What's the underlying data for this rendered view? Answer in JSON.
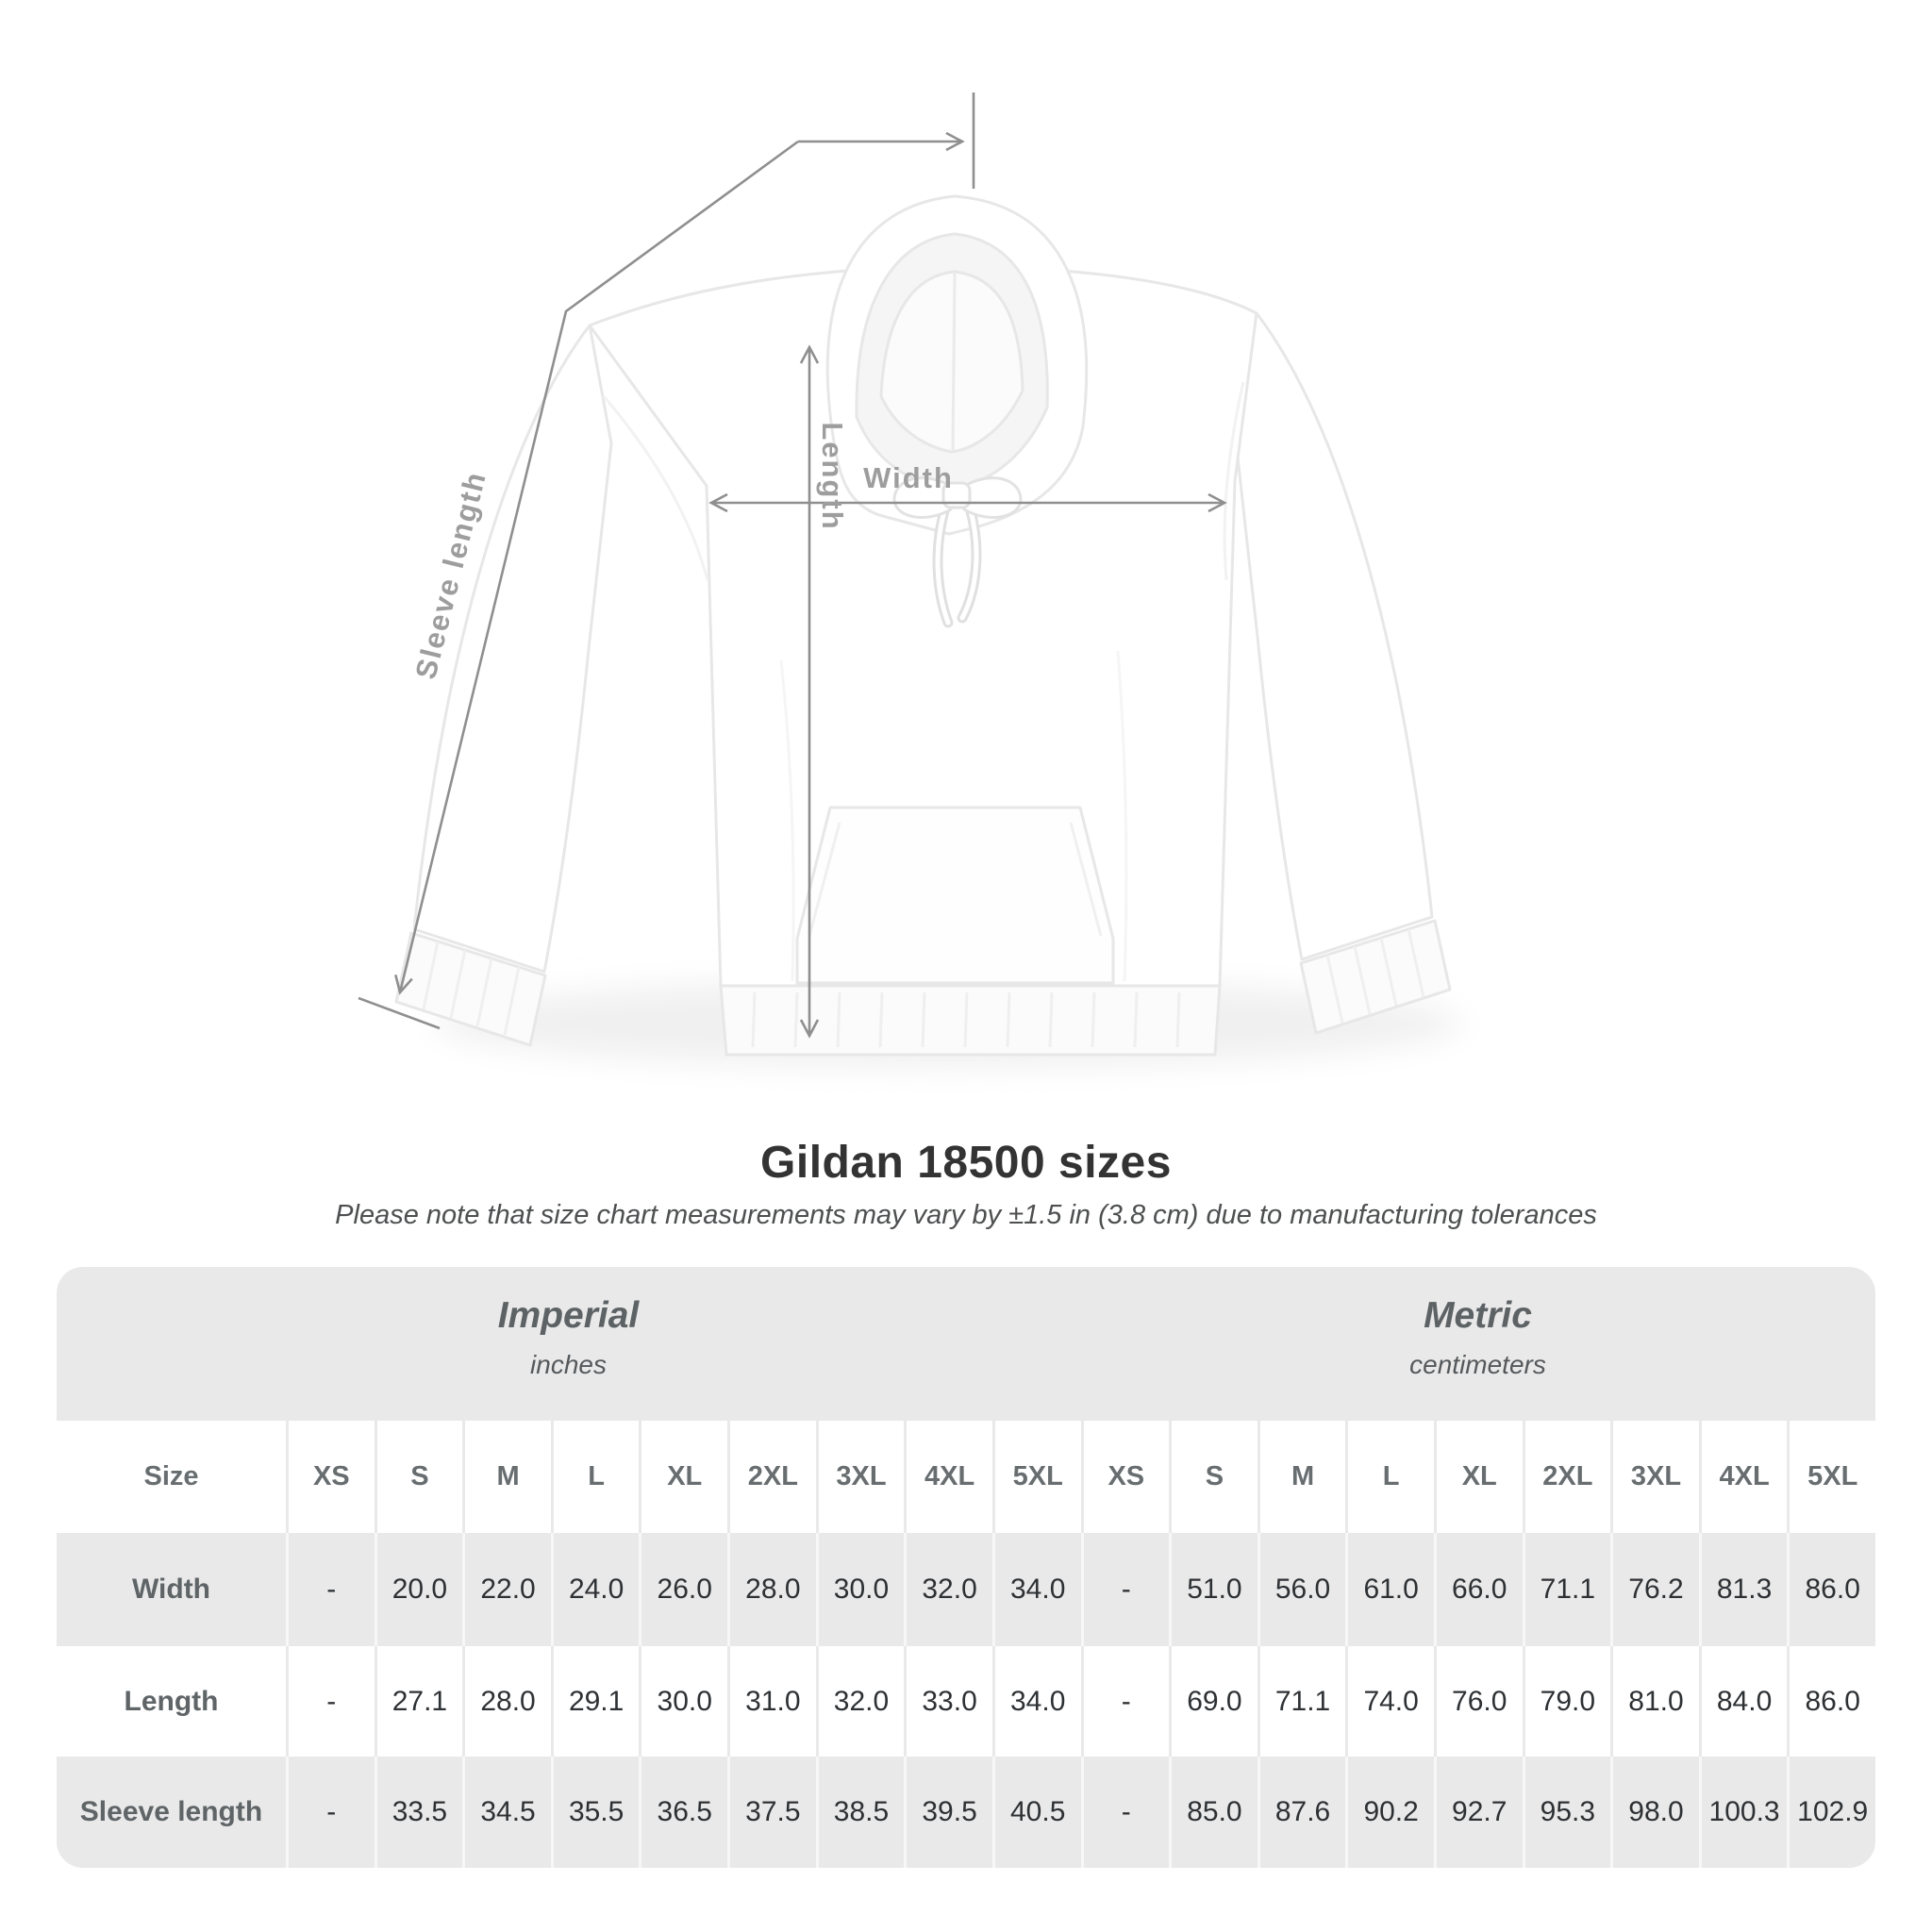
{
  "title": "Gildan 18500 sizes",
  "subtitle": "Please note that size chart measurements may vary by ±1.5 in (3.8 cm) due to manufacturing tolerances",
  "diagram": {
    "labels": {
      "length": "Length",
      "width": "Width",
      "sleeve": "Sleeve length"
    }
  },
  "table": {
    "groups": [
      {
        "name": "Imperial",
        "unit": "inches"
      },
      {
        "name": "Metric",
        "unit": "centimeters"
      }
    ],
    "size_header": "Size",
    "sizes": [
      "XS",
      "S",
      "M",
      "L",
      "XL",
      "2XL",
      "3XL",
      "4XL",
      "5XL"
    ],
    "rows": [
      {
        "label": "Width",
        "imperial": [
          "-",
          "20.0",
          "22.0",
          "24.0",
          "26.0",
          "28.0",
          "30.0",
          "32.0",
          "34.0"
        ],
        "metric": [
          "-",
          "51.0",
          "56.0",
          "61.0",
          "66.0",
          "71.1",
          "76.2",
          "81.3",
          "86.0"
        ]
      },
      {
        "label": "Length",
        "imperial": [
          "-",
          "27.1",
          "28.0",
          "29.1",
          "30.0",
          "31.0",
          "32.0",
          "33.0",
          "34.0"
        ],
        "metric": [
          "-",
          "69.0",
          "71.1",
          "74.0",
          "76.0",
          "79.0",
          "81.0",
          "84.0",
          "86.0"
        ]
      },
      {
        "label": "Sleeve length",
        "imperial": [
          "-",
          "33.5",
          "34.5",
          "35.5",
          "36.5",
          "37.5",
          "38.5",
          "39.5",
          "40.5"
        ],
        "metric": [
          "-",
          "85.0",
          "87.6",
          "90.2",
          "92.7",
          "95.3",
          "98.0",
          "100.3",
          "102.9"
        ]
      }
    ]
  },
  "colors": {
    "measure_line": "#8f8f8f",
    "measure_label": "#9d9d9d",
    "table_band": "#e9e9e9",
    "row_alt": "#e9e9e9",
    "title_text": "#333333",
    "header_text": "#5d6265",
    "value_text": "#2e3134"
  }
}
